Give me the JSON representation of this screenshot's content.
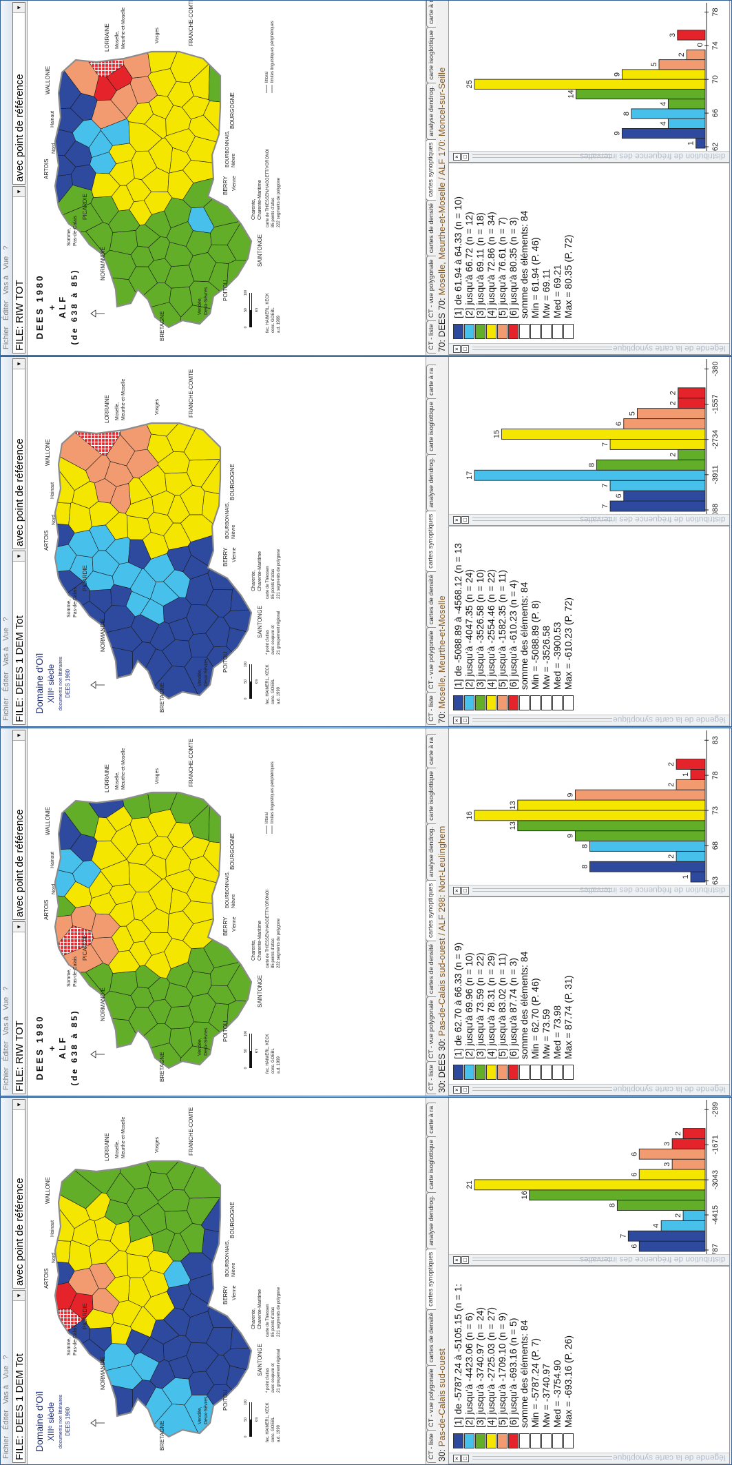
{
  "menu": [
    "Fichier",
    "Éditer",
    "Vas à",
    "Vue",
    "?"
  ],
  "tabs": [
    "CT - liste",
    "CT - vue polygonale",
    "cartes de densité",
    "cartes synoptiques",
    "analyse dendrog.",
    "carte isoglottique",
    "carte à ra"
  ],
  "active_tab": 3,
  "panels": {
    "legend_title": "légende de la carte synoptique",
    "hist_title": "distribution de fréquence des intervalles",
    "close_glyph": "×",
    "float_glyph": "□"
  },
  "palette": {
    "classes": [
      "#2e4a9e",
      "#48c0ec",
      "#62ae28",
      "#f5e600",
      "#f29b70",
      "#e4242a"
    ],
    "empty": "#ffffff",
    "place_text": "#8a5a1c",
    "window_frame": "#2f5f95"
  },
  "map_common": {
    "regions": [
      "ARTOIS",
      "Nord",
      "Hainaut",
      "LORRAINE",
      "Moselle,",
      "Meurthe-et-Moselle",
      "Vosges",
      "FRANCHE-COMTE",
      "BOURGOGNE",
      "BOURBONNAIS,",
      "Nièvre",
      "BERRY",
      "Vienne",
      "Charente,",
      "Charente-Maritime",
      "SAINTONGE",
      "POITOU",
      "Vendée,",
      "Deux-Sèvres",
      "BRETAGNE",
      "NORMANDIE",
      "PICARDIE",
      "Somme,",
      "Pas-de-Calais"
    ],
    "scale": [
      "0",
      "50",
      "100",
      "km"
    ],
    "north_icon": "north-arrow-icon"
  },
  "windows": [
    {
      "type": "RIW",
      "file": "FILE: RIW TOT",
      "reference": "avec point de référence",
      "status": {
        "id": "70: DEES 70: ",
        "place": "Moselle, Meurthe-et-Moselle / ALF 170: Moncel-sur-Seille"
      },
      "map": {
        "wallonie": "WALLONIE",
        "title": [
          "DEES 1980",
          "+",
          "ALF",
          "(de 638 à 85)"
        ],
        "credits": [
          "fec. HAIMERL, KECK",
          "conc. GOEBL",
          "a.d. 1999"
        ],
        "notes": [
          "carte de THIESSEN/HAGGETT/VORONOI",
          "85 points d'atlas",
          "222 segments de polygone"
        ],
        "coast_legend": [
          "littoral",
          "limites linguistiques périphériques"
        ]
      },
      "legend": [
        "[1] de 61.94 à 64.33 (n = 10)",
        "[2] jusqu'à 66.72 (n = 12)",
        "[3] jusqu'à 69.11 (n = 18)",
        "[4] jusqu'à 72.86 (n = 34)",
        "[5] jusqu'à 76.61 (n = 7)",
        "[6] jusqu'à 80.35 (n = 3)",
        "somme des éléments: 84",
        "Min = 61.94  (P. 46)",
        "Mw = 69.11",
        "Med = 69.21",
        "Max = 80.35  (P. 72)"
      ],
      "histogram": {
        "values": [
          1,
          9,
          4,
          8,
          4,
          14,
          25,
          9,
          5,
          2,
          0,
          3
        ],
        "classes": [
          1,
          1,
          2,
          2,
          3,
          3,
          4,
          4,
          5,
          5,
          6,
          6
        ],
        "ticks": [
          "62",
          "66",
          "70",
          "74",
          "78"
        ]
      }
    },
    {
      "type": "DEM",
      "file": "FILE: DEES 1 DEM Tot",
      "reference": "avec point de référence",
      "status": {
        "id": "70: ",
        "place": "Moselle, Meurthe-et-Moselle"
      },
      "map": {
        "wallonie": "WALLONE",
        "title": [
          "Domaine d'Oïl",
          "XIIIᵉ siècle",
          "documents non littéraires",
          "DEES 1980"
        ],
        "credits": [
          "fec. HAIMERL, KECK",
          "conc. GOEBL",
          "a.d. 1999"
        ],
        "notes": [
          "carte de Thiessen",
          "85 points d'atlas",
          "221 segments de polygone"
        ],
        "atlas_notes": [
          "* point d'atlas",
          "avec coupure et",
          "21 groupement régional"
        ]
      },
      "legend": [
        "[1] de -5088.89 à -4568.12 (n = 13",
        "[2] jusqu'à -4047.35 (n = 24)",
        "[3] jusqu'à -3526.58 (n = 10)",
        "[4] jusqu'à -2554.46 (n = 22)",
        "[5] jusqu'à -1582.35 (n = 11)",
        "[6] jusqu'à -610.23 (n = 4)",
        "somme des éléments: 84",
        "Min = -5088.89  (P. 8)",
        "Mw = -3526.58",
        "Med = -3900.53",
        "Max = -610.23  (P. 72)"
      ],
      "histogram": {
        "values": [
          7,
          6,
          7,
          17,
          8,
          2,
          7,
          15,
          6,
          5,
          2,
          2
        ],
        "classes": [
          1,
          1,
          2,
          2,
          3,
          3,
          4,
          4,
          5,
          5,
          6,
          6
        ],
        "ticks": [
          "088",
          "-3911",
          "-2734",
          "-1557",
          "-380"
        ]
      }
    },
    {
      "type": "RIW",
      "file": "FILE: RIW TOT",
      "reference": "avec point de référence",
      "status": {
        "id": "30: DEES 30: ",
        "place": "Pas-de-Calais sud-ouest / ALF 298: Nort-Leulinghem"
      },
      "map": {
        "wallonie": "WALLONIE",
        "title": [
          "DEES 1980",
          "+",
          "ALF",
          "(de 638 à 85)"
        ],
        "credits": [
          "fec. HAIMERL, KECK",
          "conc. GOEBL",
          "a.d. 1999"
        ],
        "notes": [
          "carte de THIESSEN/HAGGETT/VORONOI",
          "85 points d'atlas",
          "222 segments de polygone"
        ],
        "coast_legend": [
          "littoral",
          "limites linguistiques périphériques"
        ]
      },
      "legend": [
        "[1] de 62.70 à 66.33 (n = 9)",
        "[2] jusqu'à 69.96 (n = 10)",
        "[3] jusqu'à 73.59 (n = 22)",
        "[4] jusqu'à 78.31 (n = 29)",
        "[5] jusqu'à 83.02 (n = 11)",
        "[6] jusqu'à 87.74 (n = 3)",
        "somme des éléments: 84",
        "Min = 62.70  (P. 46)",
        "Mw = 73.59",
        "Med = 73.98",
        "Max = 87.74  (P. 31)"
      ],
      "histogram": {
        "values": [
          1,
          8,
          2,
          8,
          9,
          13,
          16,
          13,
          9,
          2,
          1,
          2
        ],
        "classes": [
          1,
          1,
          2,
          2,
          3,
          3,
          4,
          4,
          5,
          5,
          6,
          6
        ],
        "ticks": [
          "63",
          "68",
          "73",
          "78",
          "83"
        ]
      }
    },
    {
      "type": "DEM",
      "file": "FILE: DEES 1 DEM Tot",
      "reference": "avec point de référence",
      "status": {
        "id": "30: ",
        "place": "Pas-de-Calais sud-ouest"
      },
      "map": {
        "wallonie": "WALLONE",
        "title": [
          "Domaine d'Oïl",
          "XIIIᵉ siècle",
          "documents non littéraires",
          "DEES 1980"
        ],
        "credits": [
          "fec. HAIMERL, KECK",
          "conc. GOEBL",
          "a.d. 1999"
        ],
        "notes": [
          "carte de Thiessen",
          "85 points d'atlas",
          "221 segments de polygone"
        ],
        "atlas_notes": [
          "* point d'atlas",
          "avec coupure et",
          "21 groupement régional"
        ]
      },
      "legend": [
        "[1] de -5787.24 à -5105.15 (n = 1:",
        "[2] jusqu'à -4423.06 (n = 6)",
        "[3] jusqu'à -3740.97 (n = 24)",
        "[4] jusqu'à -2725.03 (n = 27)",
        "[5] jusqu'à -1709.10 (n = 9)",
        "[6] jusqu'à -693.16 (n = 5)",
        "somme des éléments: 84",
        "Min = -5787.24  (P. 7)",
        "Mw = -3740.97",
        "Med = -3754.90",
        "Max = -693.16  (P. 26)"
      ],
      "histogram": {
        "values": [
          6,
          7,
          4,
          2,
          8,
          16,
          21,
          6,
          3,
          6,
          3,
          2
        ],
        "classes": [
          1,
          1,
          2,
          2,
          3,
          3,
          4,
          4,
          5,
          5,
          6,
          6
        ],
        "ticks": [
          "787",
          "-4415",
          "-3043",
          "-1671",
          "-299"
        ]
      }
    }
  ]
}
